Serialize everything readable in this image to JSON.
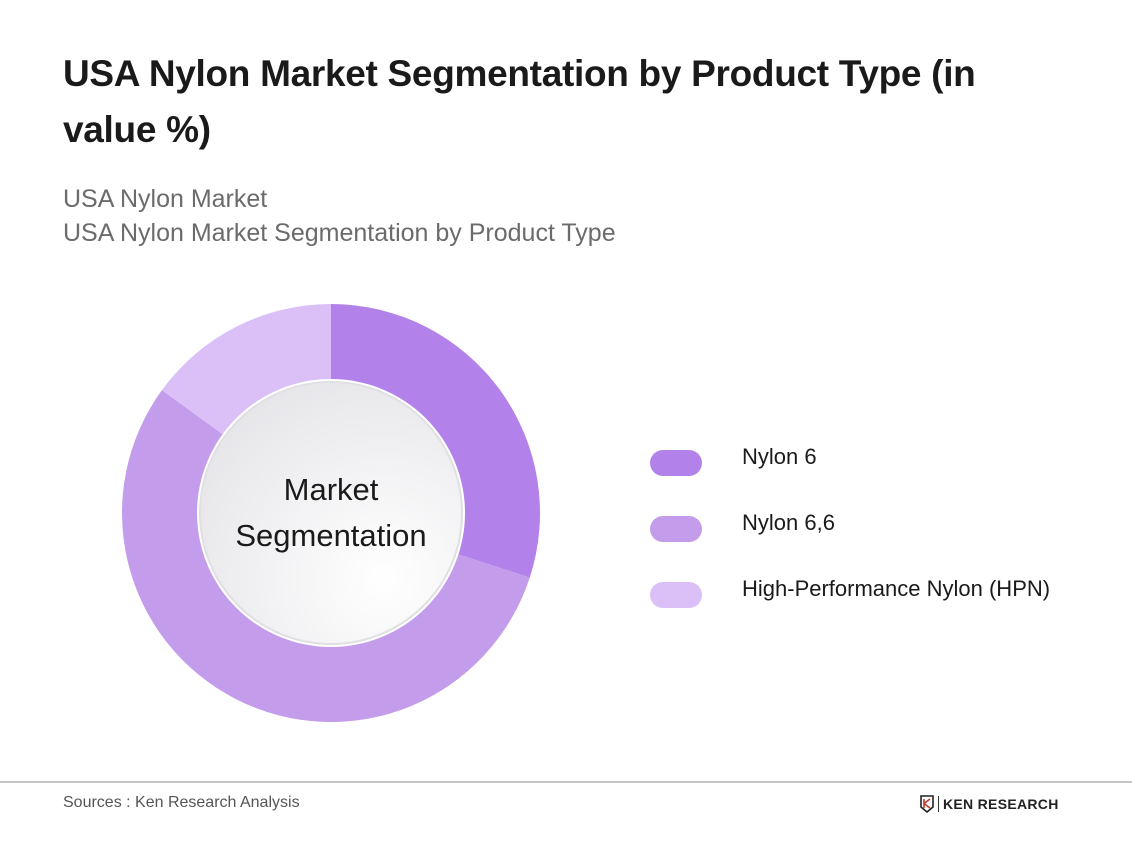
{
  "header": {
    "title": "USA Nylon Market Segmentation by Product Type (in value %)",
    "subtitle_line1": "USA Nylon Market",
    "subtitle_line2": "USA Nylon Market Segmentation by Product Type"
  },
  "chart": {
    "center_line1": "Market",
    "center_line2": "Segmentation"
  },
  "legend": [
    {
      "label": "Nylon 6",
      "color": "#B282EA"
    },
    {
      "label": "Nylon 6,6",
      "color": "#C49CEC"
    },
    {
      "label": "High-Performance Nylon (HPN)",
      "color": "#DBC0F7"
    }
  ],
  "footer": {
    "source": "Sources : Ken Research Analysis",
    "brand": "KEN RESEARCH"
  },
  "chart_data": {
    "type": "pie",
    "subtype": "donut",
    "title": "USA Nylon Market Segmentation by Product Type (in value %)",
    "subtitle": "USA Nylon Market / USA Nylon Market Segmentation by Product Type",
    "center_text": "Market Segmentation",
    "categories": [
      "Nylon 6",
      "Nylon 6,6",
      "High-Performance Nylon (HPN)"
    ],
    "values": [
      30,
      55,
      15
    ],
    "unit": "%",
    "colors": [
      "#B282EA",
      "#C49CEC",
      "#DBC0F7"
    ],
    "start_angle": "12 o'clock, clockwise",
    "legend_position": "right",
    "data_labels": false
  }
}
